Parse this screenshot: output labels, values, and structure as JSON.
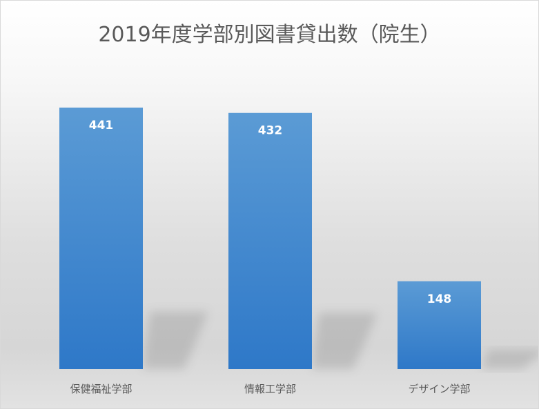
{
  "chart_data": {
    "type": "bar",
    "title": "2019年度学部別図書貸出数（院生）",
    "categories": [
      "保健福祉学部",
      "情報工学部",
      "デザイン学部"
    ],
    "values": [
      441,
      432,
      148
    ],
    "xlabel": "",
    "ylabel": "",
    "ylim": [
      0,
      441
    ],
    "grid": false,
    "legend": "none",
    "colors": {
      "bar_top": "#5b9bd5",
      "bar_bottom": "#2e78c8",
      "label": "#ffffff",
      "category_text": "#595959",
      "title_text": "#595959"
    }
  }
}
